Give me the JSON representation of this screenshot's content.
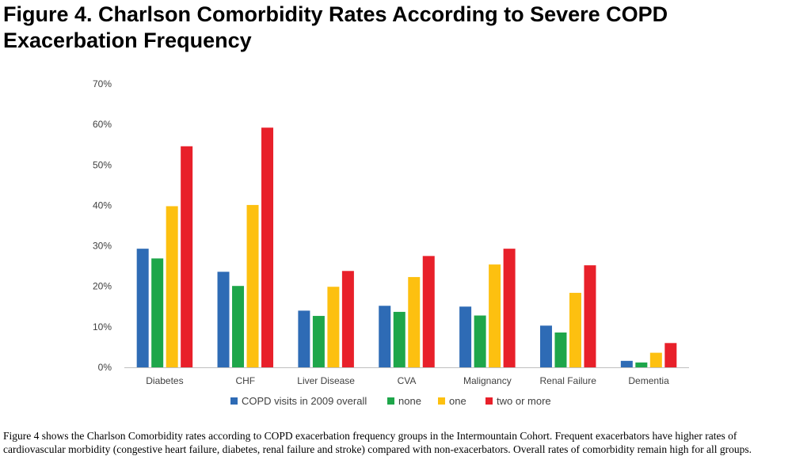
{
  "figure": {
    "title_line1": "Figure 4. Charlson Comorbidity Rates According to Severe COPD",
    "title_line2": "Exacerbation Frequency",
    "caption": "Figure 4 shows the Charlson Comorbidity rates according to COPD exacerbation frequency groups in the Intermountain Cohort. Frequent exacerbators have higher rates of cardiovascular morbidity (congestive heart failure, diabetes, renal failure and stroke) compared with non-exacerbators.  Overall rates of comorbidity remain high for all groups."
  },
  "chart_data": {
    "type": "bar",
    "title": "",
    "xlabel": "",
    "ylabel": "",
    "ylim": [
      0,
      70
    ],
    "yticks": [
      "0%",
      "10%",
      "20%",
      "30%",
      "40%",
      "50%",
      "60%",
      "70%"
    ],
    "grid": false,
    "legend_position": "bottom",
    "categories": [
      "Diabetes",
      "CHF",
      "Liver Disease",
      "CVA",
      "Malignancy",
      "Renal Failure",
      "Dementia"
    ],
    "series": [
      {
        "name": "COPD visits in 2009 overall",
        "color": "#2e6bb5",
        "values": [
          29.3,
          23.6,
          14.0,
          15.2,
          15.0,
          10.3,
          1.6
        ]
      },
      {
        "name": "none",
        "color": "#1ea64a",
        "values": [
          26.9,
          20.1,
          12.7,
          13.7,
          12.8,
          8.6,
          1.2
        ]
      },
      {
        "name": "one",
        "color": "#fdc010",
        "values": [
          39.8,
          40.1,
          19.9,
          22.3,
          25.4,
          18.4,
          3.6
        ]
      },
      {
        "name": "two or more",
        "color": "#e8202a",
        "values": [
          54.6,
          59.2,
          23.8,
          27.5,
          29.3,
          25.2,
          6.0
        ]
      }
    ]
  }
}
